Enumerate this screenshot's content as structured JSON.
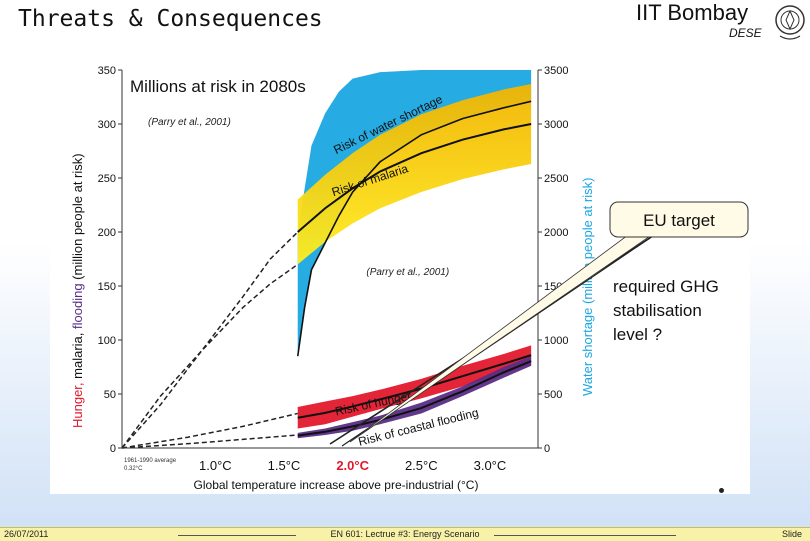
{
  "slide": {
    "title": "Threats & Consequences",
    "institute": "IIT Bombay",
    "department": "DESE"
  },
  "footer": {
    "date": "26/07/2011",
    "course": "EN 601: Lectrue #3: Energy Scenario",
    "slide_label": "Slide"
  },
  "callout": {
    "eu_target": "EU target",
    "question": [
      "required GHG",
      "stabilisation",
      "level ?"
    ]
  },
  "colors": {
    "water": "#1ba6e2",
    "malaria_light": "#ffe800",
    "malaria_dark": "#f2b400",
    "hunger": "#e2192c",
    "coastal": "#5a2d86",
    "target_tick": "#e2192c",
    "callout_fill": "#fffbe6"
  },
  "chart_data": {
    "type": "area",
    "title": "Millions at risk in 2080s",
    "source_notes": [
      "(Parry et al., 2001)",
      "(Parry et al., 2001)"
    ],
    "xlabel": "Global temperature increase above pre-industrial (°C)",
    "ylabel_left": [
      "Hunger,",
      "malaria,",
      "flooding",
      "(million people at risk)"
    ],
    "ylabel_right": "Water shortage (million people at risk)",
    "baseline_note": [
      "1961-1990 average",
      "0.32°C"
    ],
    "xlim": [
      0.32,
      3.35
    ],
    "x_ticks": [
      {
        "value": 1.0,
        "label": "1.0°C"
      },
      {
        "value": 1.5,
        "label": "1.5°C"
      },
      {
        "value": 2.0,
        "label": "2.0°C"
      },
      {
        "value": 2.5,
        "label": "2.5°C"
      },
      {
        "value": 3.0,
        "label": "3.0°C"
      }
    ],
    "highlight_tick": 2.0,
    "ylim_left": [
      0,
      350
    ],
    "y_ticks_left": [
      0,
      50,
      100,
      150,
      200,
      250,
      300,
      350
    ],
    "ylim_right": [
      0,
      3500
    ],
    "y_ticks_right": [
      0,
      500,
      1000,
      1500,
      2000,
      2500,
      3000,
      3500
    ],
    "band_labels": [
      "Risk of water shortage",
      "Risk of malaria",
      "Risk of hunger",
      "Risk of coastal flooding"
    ],
    "series": [
      {
        "name": "Risk of water shortage",
        "axis": "right",
        "colorKey": "water",
        "x": [
          1.6,
          1.65,
          1.7,
          1.8,
          1.9,
          2.0,
          2.2,
          2.5,
          2.8,
          3.1,
          3.3
        ],
        "lower": [
          850,
          1300,
          1650,
          1900,
          2150,
          2370,
          2650,
          2900,
          3050,
          3150,
          3210
        ],
        "upper": [
          2000,
          2400,
          2800,
          3100,
          3300,
          3420,
          3480,
          3500,
          3500,
          3500,
          3500
        ]
      },
      {
        "name": "Risk of malaria",
        "axis": "left",
        "colorKey": "malaria_light",
        "x": [
          1.6,
          1.8,
          2.0,
          2.2,
          2.5,
          2.8,
          3.1,
          3.3
        ],
        "lower": [
          170,
          191,
          208,
          222,
          237,
          249,
          258,
          263
        ],
        "upper": [
          230,
          253,
          273,
          290,
          309,
          322,
          332,
          337
        ]
      },
      {
        "name": "Risk of hunger",
        "axis": "left",
        "colorKey": "hunger",
        "x": [
          1.6,
          1.8,
          2.0,
          2.2,
          2.5,
          2.8,
          3.1,
          3.3
        ],
        "lower": [
          18,
          22,
          29,
          36,
          46,
          57,
          69,
          77
        ],
        "upper": [
          38,
          43,
          48,
          54,
          64,
          76,
          87,
          95
        ]
      },
      {
        "name": "Risk of coastal flooding",
        "axis": "left",
        "colorKey": "coastal",
        "x": [
          1.6,
          1.8,
          2.0,
          2.2,
          2.5,
          2.8,
          3.1,
          3.3
        ],
        "lower": [
          9,
          12,
          16,
          22,
          32,
          48,
          65,
          76
        ],
        "upper": [
          14,
          18,
          24,
          30,
          42,
          57,
          75,
          85
        ]
      }
    ],
    "dashed_lines": [
      {
        "name": "water shortage (low warming)",
        "axis": "right",
        "x": [
          0.32,
          0.6,
          0.9,
          1.2,
          1.4,
          1.6
        ],
        "y": [
          0,
          400,
          900,
          1400,
          1750,
          2000
        ]
      },
      {
        "name": "malaria (low warming)",
        "axis": "left",
        "x": [
          0.32,
          0.6,
          0.9,
          1.2,
          1.4,
          1.6
        ],
        "y": [
          0,
          48,
          90,
          130,
          152,
          170
        ]
      },
      {
        "name": "hunger (low warming)",
        "axis": "left",
        "x": [
          0.32,
          0.8,
          1.2,
          1.6
        ],
        "y": [
          0,
          10,
          20,
          32
        ]
      },
      {
        "name": "coastal flooding (low warming)",
        "axis": "left",
        "x": [
          0.32,
          0.8,
          1.2,
          1.6
        ],
        "y": [
          0,
          4,
          8,
          12
        ]
      }
    ]
  }
}
